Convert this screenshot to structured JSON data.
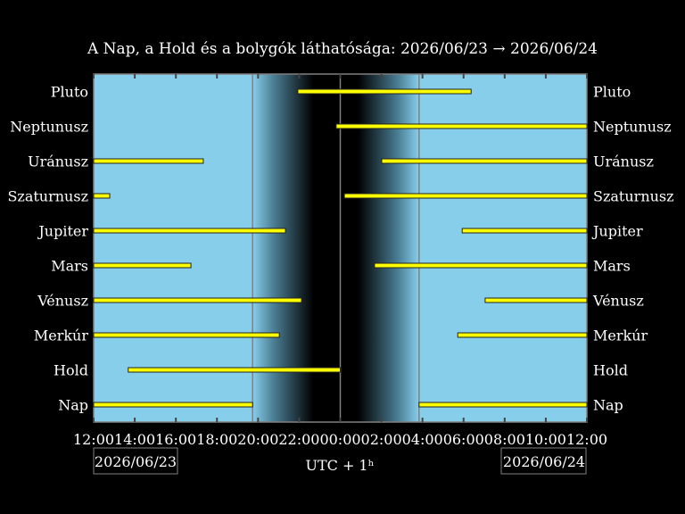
{
  "chart_data": {
    "type": "bar",
    "title": "A Nap, a Hold és a bolygók láthatósága: 2026/06/23 → 2026/06/24",
    "xlabel": "UTC + 1ʰ",
    "x_range": [
      "2026/06/23 12:00",
      "2026/06/24 12:00"
    ],
    "x_ticks": [
      "12:00",
      "14:00",
      "16:00",
      "18:00",
      "20:00",
      "22:00",
      "00:00",
      "02:00",
      "04:00",
      "06:00",
      "08:00",
      "10:00",
      "12:00"
    ],
    "start_date": "2026/06/23",
    "end_date": "2026/06/24",
    "sunset": "19:44",
    "sunrise": "03:50",
    "midnight": "00:00",
    "categories": [
      "Pluto",
      "Neptunusz",
      "Uránusz",
      "Szaturnusz",
      "Jupiter",
      "Mars",
      "Vénusz",
      "Merkúr",
      "Hold",
      "Nap"
    ],
    "intervals": [
      {
        "name": "Pluto",
        "spans": [
          [
            "21:56",
            "06:22"
          ]
        ]
      },
      {
        "name": "Neptunusz",
        "spans": [
          [
            "23:48",
            "12:00"
          ]
        ]
      },
      {
        "name": "Uránusz",
        "spans": [
          [
            "12:00",
            "17:20"
          ],
          [
            "02:01",
            "12:00"
          ]
        ]
      },
      {
        "name": "Szaturnusz",
        "spans": [
          [
            "12:00",
            "12:47"
          ],
          [
            "00:12",
            "12:00"
          ]
        ]
      },
      {
        "name": "Jupiter",
        "spans": [
          [
            "12:00",
            "21:20"
          ],
          [
            "05:56",
            "12:00"
          ]
        ]
      },
      {
        "name": "Mars",
        "spans": [
          [
            "12:00",
            "16:44"
          ],
          [
            "01:40",
            "12:00"
          ]
        ]
      },
      {
        "name": "Vénusz",
        "spans": [
          [
            "12:00",
            "22:07"
          ],
          [
            "07:03",
            "12:00"
          ]
        ]
      },
      {
        "name": "Merkúr",
        "spans": [
          [
            "12:00",
            "21:02"
          ],
          [
            "05:43",
            "12:00"
          ]
        ]
      },
      {
        "name": "Hold",
        "spans": [
          [
            "13:41",
            "00:00"
          ]
        ]
      },
      {
        "name": "Nap",
        "spans": [
          [
            "12:00",
            "19:44"
          ],
          [
            "03:50",
            "12:00"
          ]
        ]
      }
    ],
    "colors": {
      "day": "#87ceeb",
      "night": "#000000",
      "bar": "#ffff00",
      "frame": "#808080"
    }
  }
}
